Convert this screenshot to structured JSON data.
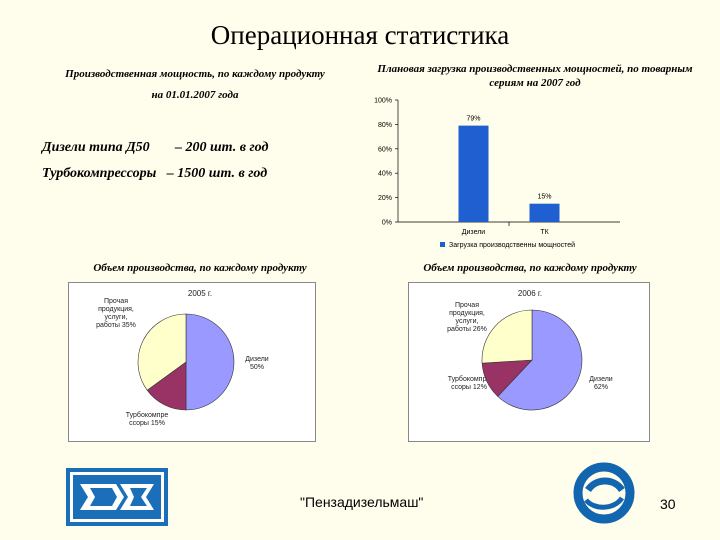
{
  "slide": {
    "title": "Операционная статистика",
    "capacity_caption_line1": "Производственная мощность, по каждому продукту",
    "capacity_caption_line2": "на 01.01.2007 года",
    "fact_diesel_name": "Дизели типа Д50",
    "fact_diesel_value": "– 200 шт. в год",
    "fact_turbo": "Турбокомпрессоры   – 1500 шт. в год",
    "footer": "\"Пензадизельмаш\"",
    "page_number": "30",
    "pie_caption_left": "Объем производства, по каждому продукту",
    "pie_caption_right": "Объем производства, по каждому продукту"
  },
  "colors": {
    "background": "#fffdeb",
    "bar": "#1f5fd0",
    "diesel": "#9999ff",
    "turbo": "#993366",
    "other": "#ffffcc",
    "logo_left": "#1b6fb8",
    "logo_right": "#1266b0"
  },
  "icons": {
    "logo_left": "pd-logo-icon",
    "logo_right": "ring-logo-icon"
  },
  "chart_data": [
    {
      "type": "bar",
      "title": "Плановая загрузка производственных мощностей, по товарным сериям на 2007 год",
      "categories": [
        "Дизели",
        "ТК"
      ],
      "series": [
        {
          "name": "Загрузка производственны мощностей",
          "values": [
            79,
            15
          ]
        }
      ],
      "data_labels": [
        "79%",
        "15%"
      ],
      "y_ticks": [
        "0%",
        "20%",
        "40%",
        "60%",
        "80%",
        "100%"
      ],
      "ylim": [
        0,
        100
      ],
      "legend": "bottom",
      "grid": false
    },
    {
      "type": "pie",
      "title": "2005 г.",
      "slices": [
        {
          "name": "Дизели",
          "value": 50,
          "label": "Дизели 50%"
        },
        {
          "name": "Турбокомпрессоры",
          "value": 15,
          "label": "Турбокомпре ссоры 15%"
        },
        {
          "name": "Прочая продукция, услуги, работы",
          "value": 35,
          "label": "Прочая продукция, услуги, работы 35%"
        }
      ]
    },
    {
      "type": "pie",
      "title": "2006 г.",
      "slices": [
        {
          "name": "Дизели",
          "value": 62,
          "label": "Дизели 62%"
        },
        {
          "name": "Турбокомпрессоры",
          "value": 12,
          "label": "Турбокомпре ссоры 12%"
        },
        {
          "name": "Прочая продукция, услуги, работы",
          "value": 26,
          "label": "Прочая продукция, услуги, работы 26%"
        }
      ]
    }
  ]
}
